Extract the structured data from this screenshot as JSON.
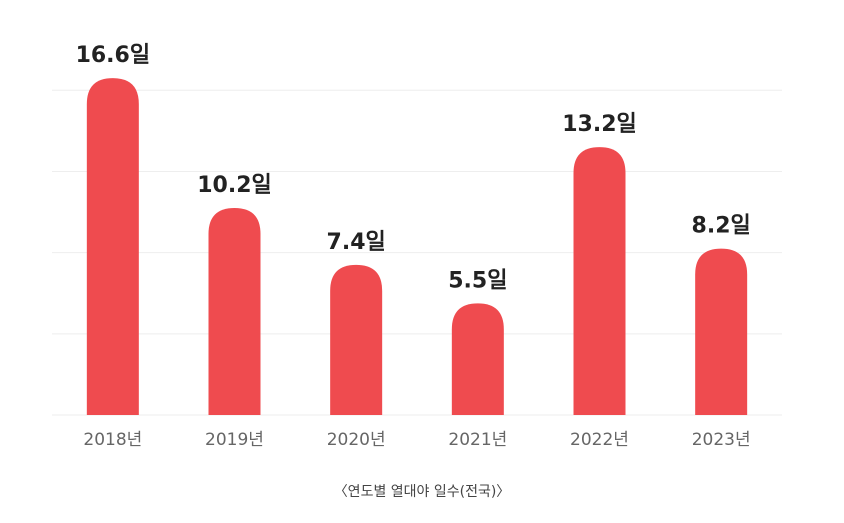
{
  "chart_data": {
    "type": "bar",
    "caption": "〈연도별 열대야 일수(전국)〉",
    "categories": [
      "2018년",
      "2019년",
      "2020년",
      "2021년",
      "2022년",
      "2023년"
    ],
    "values": [
      16.6,
      10.2,
      7.4,
      5.5,
      13.2,
      8.2
    ],
    "value_labels": [
      "16.6일",
      "10.2일",
      "7.4일",
      "5.5일",
      "13.2일",
      "8.2일"
    ],
    "color": "#ef4b4f",
    "ylim": [
      0,
      17
    ],
    "yticks": [
      0,
      4,
      8,
      12,
      16
    ],
    "grid": true
  }
}
